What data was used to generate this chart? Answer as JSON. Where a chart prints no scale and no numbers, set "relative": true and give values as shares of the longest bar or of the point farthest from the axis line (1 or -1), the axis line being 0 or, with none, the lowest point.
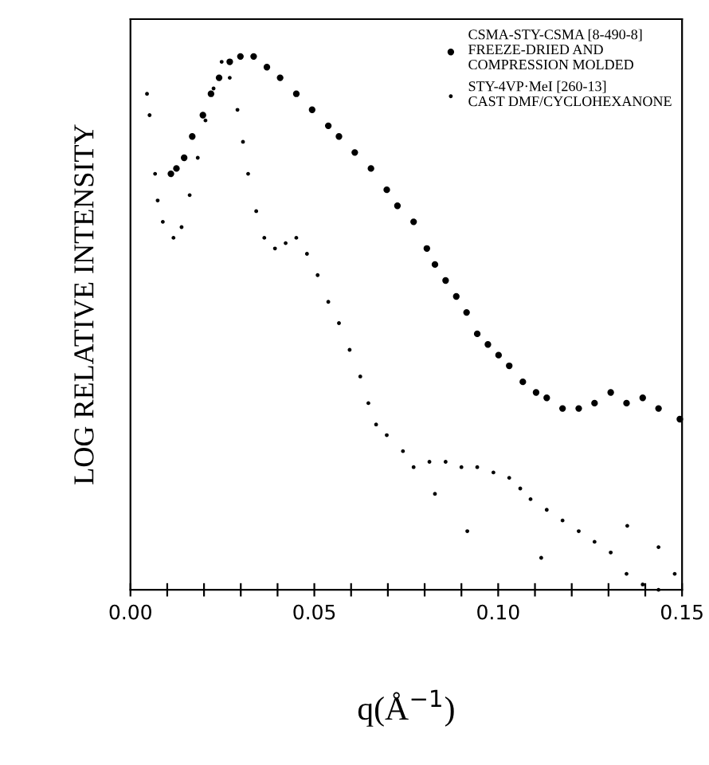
{
  "chart_data": {
    "type": "scatter",
    "relative": true,
    "xlabel": "q(Å$^{−1}$)",
    "ylabel": "LOG RELATIVE INTENSITY",
    "xlim": [
      0,
      0.15
    ],
    "xticks": [
      {
        "value": 0,
        "label": "0.00"
      },
      {
        "value": 0.01,
        "label": null
      },
      {
        "value": 0.02,
        "label": null
      },
      {
        "value": 0.03,
        "label": null
      },
      {
        "value": 0.04,
        "label": null
      },
      {
        "value": 0.05,
        "label": "0.05"
      },
      {
        "value": 0.06,
        "label": null
      },
      {
        "value": 0.07,
        "label": null
      },
      {
        "value": 0.08,
        "label": null
      },
      {
        "value": 0.09,
        "label": null
      },
      {
        "value": 0.1,
        "label": "0.10"
      },
      {
        "value": 0.11,
        "label": null
      },
      {
        "value": 0.12,
        "label": null
      },
      {
        "value": 0.13,
        "label": null
      },
      {
        "value": 0.14,
        "label": null
      },
      {
        "value": 0.15,
        "label": "0.15"
      }
    ],
    "legend": "top right",
    "marker": "circle",
    "grid": false,
    "tick_labels": "x",
    "series": [
      {
        "name": "CSMA-STY-CSMA [8-490-8]\nFREEZE-DRIED AND\nCOMPRESSION MOLDED",
        "color": "#000000",
        "x": [
          0.011,
          0.0125,
          0.0146,
          0.0168,
          0.0197,
          0.0219,
          0.0241,
          0.027,
          0.0299,
          0.0335,
          0.0371,
          0.0407,
          0.0451,
          0.0494,
          0.0538,
          0.0567,
          0.061,
          0.0654,
          0.0697,
          0.0726,
          0.077,
          0.0806,
          0.0828,
          0.0857,
          0.0886,
          0.0914,
          0.0943,
          0.0972,
          0.1001,
          0.103,
          0.1067,
          0.1103,
          0.1132,
          0.1175,
          0.1219,
          0.1262,
          0.1306,
          0.1349,
          0.1393,
          0.1436,
          0.1494
        ],
        "values": [
          0.78,
          0.79,
          0.81,
          0.85,
          0.89,
          0.93,
          0.96,
          0.99,
          1.0,
          1.0,
          0.98,
          0.96,
          0.93,
          0.9,
          0.87,
          0.85,
          0.82,
          0.79,
          0.75,
          0.72,
          0.69,
          0.64,
          0.61,
          0.58,
          0.55,
          0.52,
          0.48,
          0.46,
          0.44,
          0.42,
          0.39,
          0.37,
          0.36,
          0.34,
          0.34,
          0.35,
          0.37,
          0.35,
          0.36,
          0.34,
          0.32
        ]
      },
      {
        "name": "STY-4VP·MeI [260-13]\nCAST DMF/CYCLOHEXANONE",
        "color": "#000000",
        "x": [
          0.0045,
          0.0052,
          0.0067,
          0.0074,
          0.0088,
          0.0117,
          0.0139,
          0.0161,
          0.0183,
          0.0204,
          0.0226,
          0.0248,
          0.027,
          0.0291,
          0.0306,
          0.032,
          0.0342,
          0.0364,
          0.0393,
          0.0422,
          0.0451,
          0.048,
          0.0509,
          0.0538,
          0.0567,
          0.0596,
          0.0625,
          0.0647,
          0.0668,
          0.0697,
          0.0741,
          0.077,
          0.0813,
          0.0857,
          0.09,
          0.0943,
          0.0987,
          0.103,
          0.106,
          0.1088,
          0.1132,
          0.1175,
          0.1219,
          0.1262,
          0.1306,
          0.1349,
          0.1393,
          0.1436,
          0.148,
          0.0916,
          0.0828,
          0.1117,
          0.1436,
          0.1351
        ],
        "values": [
          0.93,
          0.89,
          0.78,
          0.73,
          0.69,
          0.66,
          0.68,
          0.74,
          0.81,
          0.88,
          0.94,
          0.99,
          0.96,
          0.9,
          0.84,
          0.78,
          0.71,
          0.66,
          0.64,
          0.65,
          0.66,
          0.63,
          0.59,
          0.54,
          0.5,
          0.45,
          0.4,
          0.35,
          0.31,
          0.29,
          0.26,
          0.23,
          0.24,
          0.24,
          0.23,
          0.23,
          0.22,
          0.21,
          0.19,
          0.17,
          0.15,
          0.13,
          0.11,
          0.09,
          0.07,
          0.03,
          0.01,
          0.0,
          0.03,
          0.11,
          0.18,
          0.06,
          0.08,
          0.12
        ]
      }
    ]
  }
}
